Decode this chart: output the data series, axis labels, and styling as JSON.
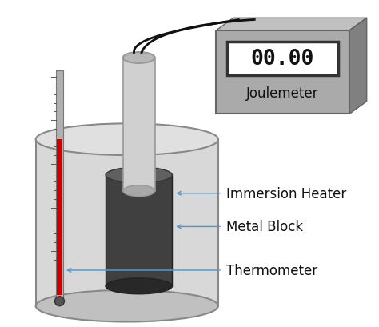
{
  "background_color": "#ffffff",
  "labels": {
    "immersion_heater": "Immersion Heater",
    "metal_block": "Metal Block",
    "thermometer": "Thermometer",
    "joulemeter": "Joulemeter",
    "display": "00.00"
  },
  "colors": {
    "cyl_face": "#d8d8d8",
    "cyl_edge": "#888888",
    "cyl_top_fill": "#e0e0e0",
    "cyl_bot_fill": "#c0c0c0",
    "metal_block_side": "#404040",
    "metal_block_top": "#606060",
    "metal_block_bot": "#282828",
    "heater_side": "#d0d0d0",
    "heater_top": "#b8b8b8",
    "heater_bot": "#a8a8a8",
    "therm_glass": "#b0b0b0",
    "therm_liquid": "#cc0000",
    "therm_tick": "#555555",
    "therm_bulb": "#444444",
    "joulemeter_front": "#aaaaaa",
    "joulemeter_side": "#808080",
    "joulemeter_top": "#c0c0c0",
    "joulemeter_edge": "#666666",
    "display_bg": "#ffffff",
    "display_border": "#333333",
    "display_text": "#111111",
    "wire": "#111111",
    "arrow": "#5599cc",
    "label": "#111111"
  },
  "figsize": [
    4.74,
    4.1
  ],
  "dpi": 100
}
